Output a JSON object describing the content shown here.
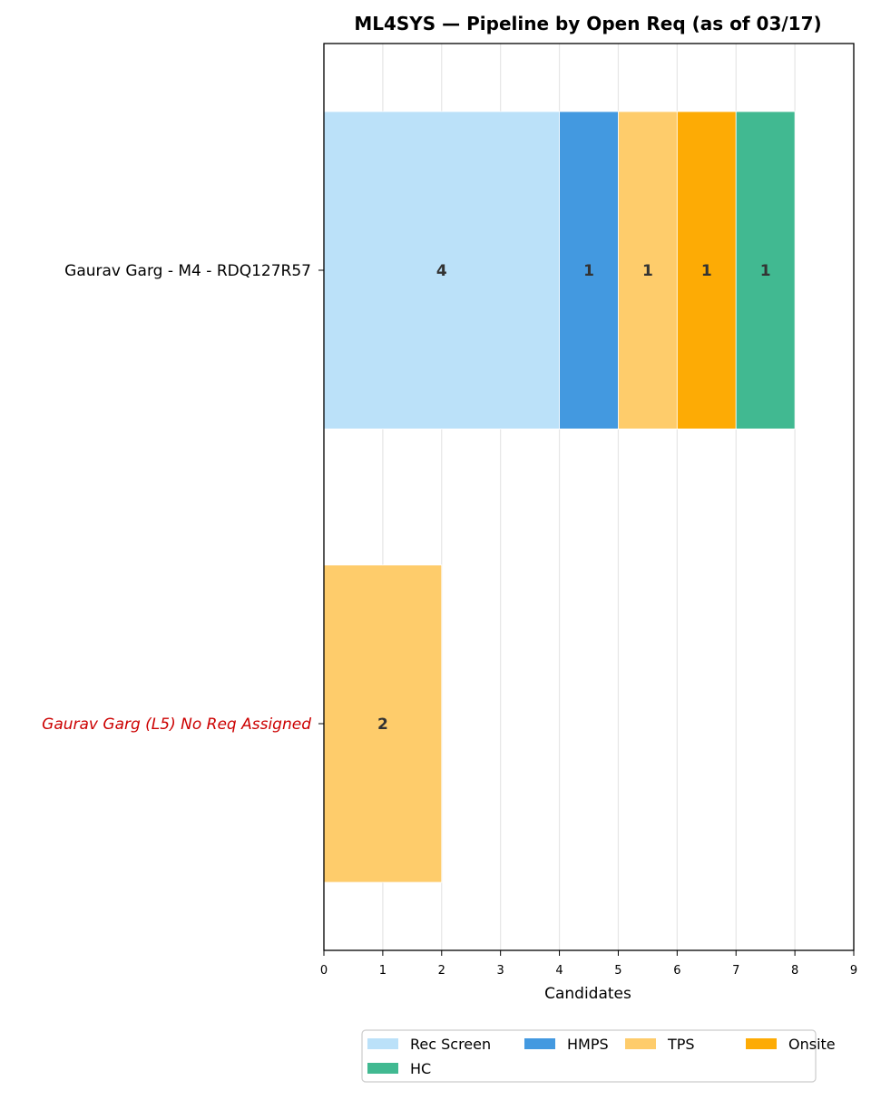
{
  "chart_data": {
    "type": "bar",
    "orientation": "horizontal",
    "stacked": true,
    "title": "ML4SYS — Pipeline by Open Req (as of 03/17)",
    "xlabel": "Candidates",
    "xlim": [
      0,
      9
    ],
    "x_ticks": [
      "0",
      "1",
      "2",
      "3",
      "4",
      "5",
      "6",
      "7",
      "8",
      "9"
    ],
    "grid": "vertical",
    "legend_position": "bottom-center",
    "categories": [
      {
        "label": "Gaurav Garg - M4 - RDQ127R57",
        "color": "#000000",
        "italic": false
      },
      {
        "label": "Gaurav Garg (L5) No Req Assigned",
        "color": "#cc0000",
        "italic": true
      }
    ],
    "series": [
      {
        "name": "Rec Screen",
        "color": "#bbe1f9",
        "values": [
          4,
          0
        ]
      },
      {
        "name": "HMPS",
        "color": "#4399e0",
        "values": [
          1,
          0
        ]
      },
      {
        "name": "TPS",
        "color": "#fecc6b",
        "values": [
          1,
          2
        ]
      },
      {
        "name": "Onsite",
        "color": "#fdab05",
        "values": [
          1,
          0
        ]
      },
      {
        "name": "HC",
        "color": "#41b991",
        "values": [
          1,
          0
        ]
      }
    ]
  }
}
